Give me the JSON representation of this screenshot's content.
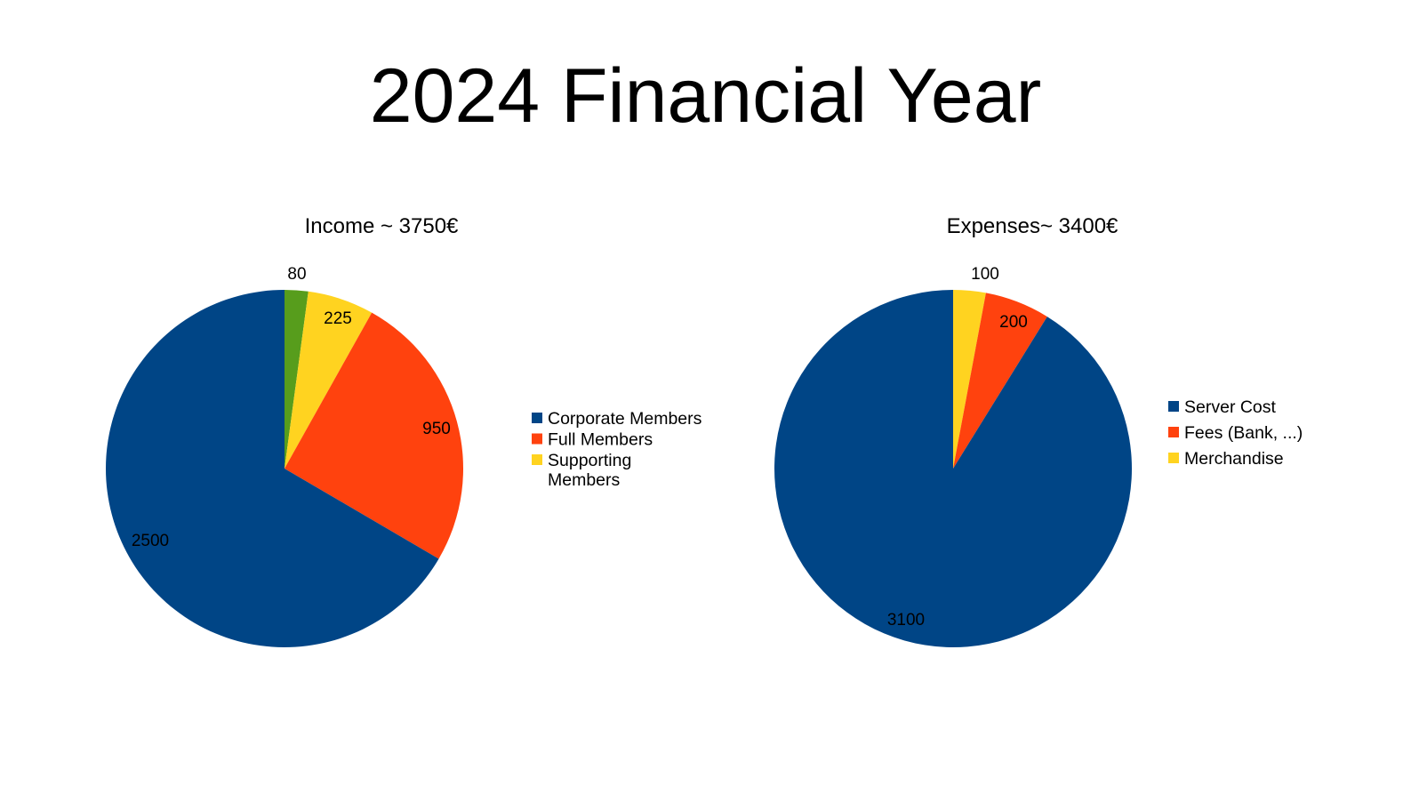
{
  "page": {
    "title": "2024 Financial Year"
  },
  "chart_data": [
    {
      "type": "pie",
      "title": "Income ~ 3750€",
      "start_angle": "top",
      "direction": "clockwise",
      "legend_position": "right",
      "slices": [
        {
          "name": "Supporting Members",
          "legend_lines": [
            "Supporting",
            "Members"
          ],
          "value": 80,
          "label": "80",
          "color": "#579d1c"
        },
        {
          "name": "Supporting Members",
          "legend_lines": [
            "Supporting",
            "Members"
          ],
          "value": 225,
          "label": "225",
          "color": "#ffd320"
        },
        {
          "name": "Full Members",
          "legend_lines": [
            "Full Members"
          ],
          "value": 950,
          "label": "950",
          "color": "#ff420e"
        },
        {
          "name": "Corporate Members",
          "legend_lines": [
            "Corporate Members"
          ],
          "value": 2500,
          "label": "2500",
          "color": "#004586"
        }
      ],
      "legend": [
        {
          "lines": [
            "Corporate Members"
          ],
          "color": "#004586"
        },
        {
          "lines": [
            "Full Members"
          ],
          "color": "#ff420e"
        },
        {
          "lines": [
            "Supporting",
            "Members"
          ],
          "color": "#ffd320"
        }
      ]
    },
    {
      "type": "pie",
      "title": "Expenses~ 3400€",
      "start_angle": "top",
      "direction": "clockwise",
      "legend_position": "right",
      "slices": [
        {
          "name": "Merchandise",
          "value": 100,
          "label": "100",
          "color": "#ffd320"
        },
        {
          "name": "Fees (Bank, ...)",
          "value": 200,
          "label": "200",
          "color": "#ff420e"
        },
        {
          "name": "Server Cost",
          "value": 3100,
          "label": "3100",
          "color": "#004586"
        }
      ],
      "legend": [
        {
          "lines": [
            "Server Cost"
          ],
          "color": "#004586"
        },
        {
          "lines": [
            "Fees (Bank, ...)"
          ],
          "color": "#ff420e"
        },
        {
          "lines": [
            "Merchandise"
          ],
          "color": "#ffd320"
        }
      ]
    }
  ]
}
